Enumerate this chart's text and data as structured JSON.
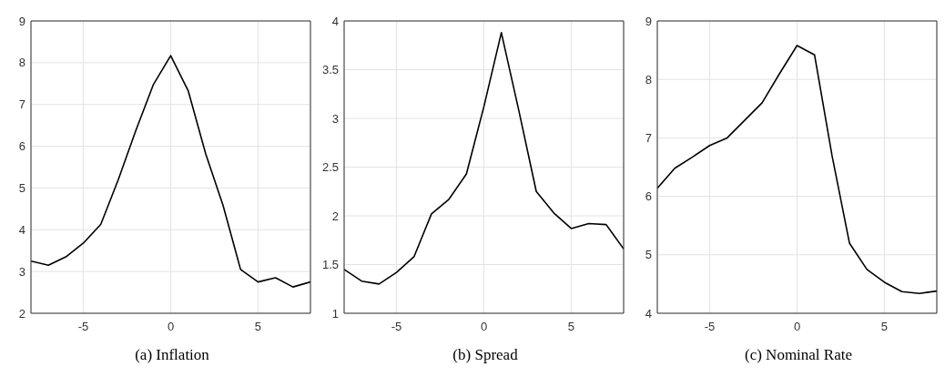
{
  "chart_data": [
    {
      "type": "line",
      "xlabel": "(a)  Inflation",
      "x": [
        -8,
        -7,
        -6,
        -5,
        -4,
        -3,
        -2,
        -1,
        0,
        1,
        2,
        3,
        4,
        5,
        6,
        7,
        8
      ],
      "series": [
        {
          "color": "#000000",
          "values": [
            3.25,
            3.15,
            3.35,
            3.68,
            4.13,
            5.2,
            6.37,
            7.47,
            8.17,
            7.33,
            5.82,
            4.58,
            3.05,
            2.75,
            2.85,
            2.63,
            2.75
          ]
        }
      ],
      "xlim": [
        -8,
        8
      ],
      "xticks": [
        -5,
        0,
        5
      ],
      "ylim": [
        2,
        9
      ],
      "yticks": [
        2,
        3,
        4,
        5,
        6,
        7,
        8,
        9
      ],
      "grid": true
    },
    {
      "type": "line",
      "xlabel": "(b)  Spread",
      "x": [
        -8,
        -7,
        -6,
        -5,
        -4,
        -3,
        -2,
        -1,
        0,
        1,
        2,
        3,
        4,
        5,
        6,
        7,
        8
      ],
      "series": [
        {
          "color": "#000000",
          "values": [
            1.45,
            1.33,
            1.3,
            1.42,
            1.58,
            2.02,
            2.17,
            2.43,
            3.12,
            3.88,
            3.08,
            2.25,
            2.03,
            1.87,
            1.92,
            1.91,
            1.66
          ]
        }
      ],
      "xlim": [
        -8,
        8
      ],
      "xticks": [
        -5,
        0,
        5
      ],
      "ylim": [
        1,
        4
      ],
      "yticks": [
        1,
        1.5,
        2,
        2.5,
        3,
        3.5,
        4
      ],
      "grid": true
    },
    {
      "type": "line",
      "xlabel": "(c)  Nominal Rate",
      "x": [
        -8,
        -7,
        -6,
        -5,
        -4,
        -3,
        -2,
        -1,
        0,
        1,
        2,
        3,
        4,
        5,
        6,
        7,
        8
      ],
      "series": [
        {
          "color": "#000000",
          "values": [
            6.14,
            6.48,
            6.67,
            6.87,
            7.0,
            7.3,
            7.6,
            8.1,
            8.58,
            8.42,
            6.7,
            5.2,
            4.75,
            4.53,
            4.37,
            4.34,
            4.38
          ]
        }
      ],
      "xlim": [
        -8,
        8
      ],
      "xticks": [
        -5,
        0,
        5
      ],
      "ylim": [
        4,
        9
      ],
      "yticks": [
        4,
        5,
        6,
        7,
        8,
        9
      ],
      "grid": true
    }
  ]
}
